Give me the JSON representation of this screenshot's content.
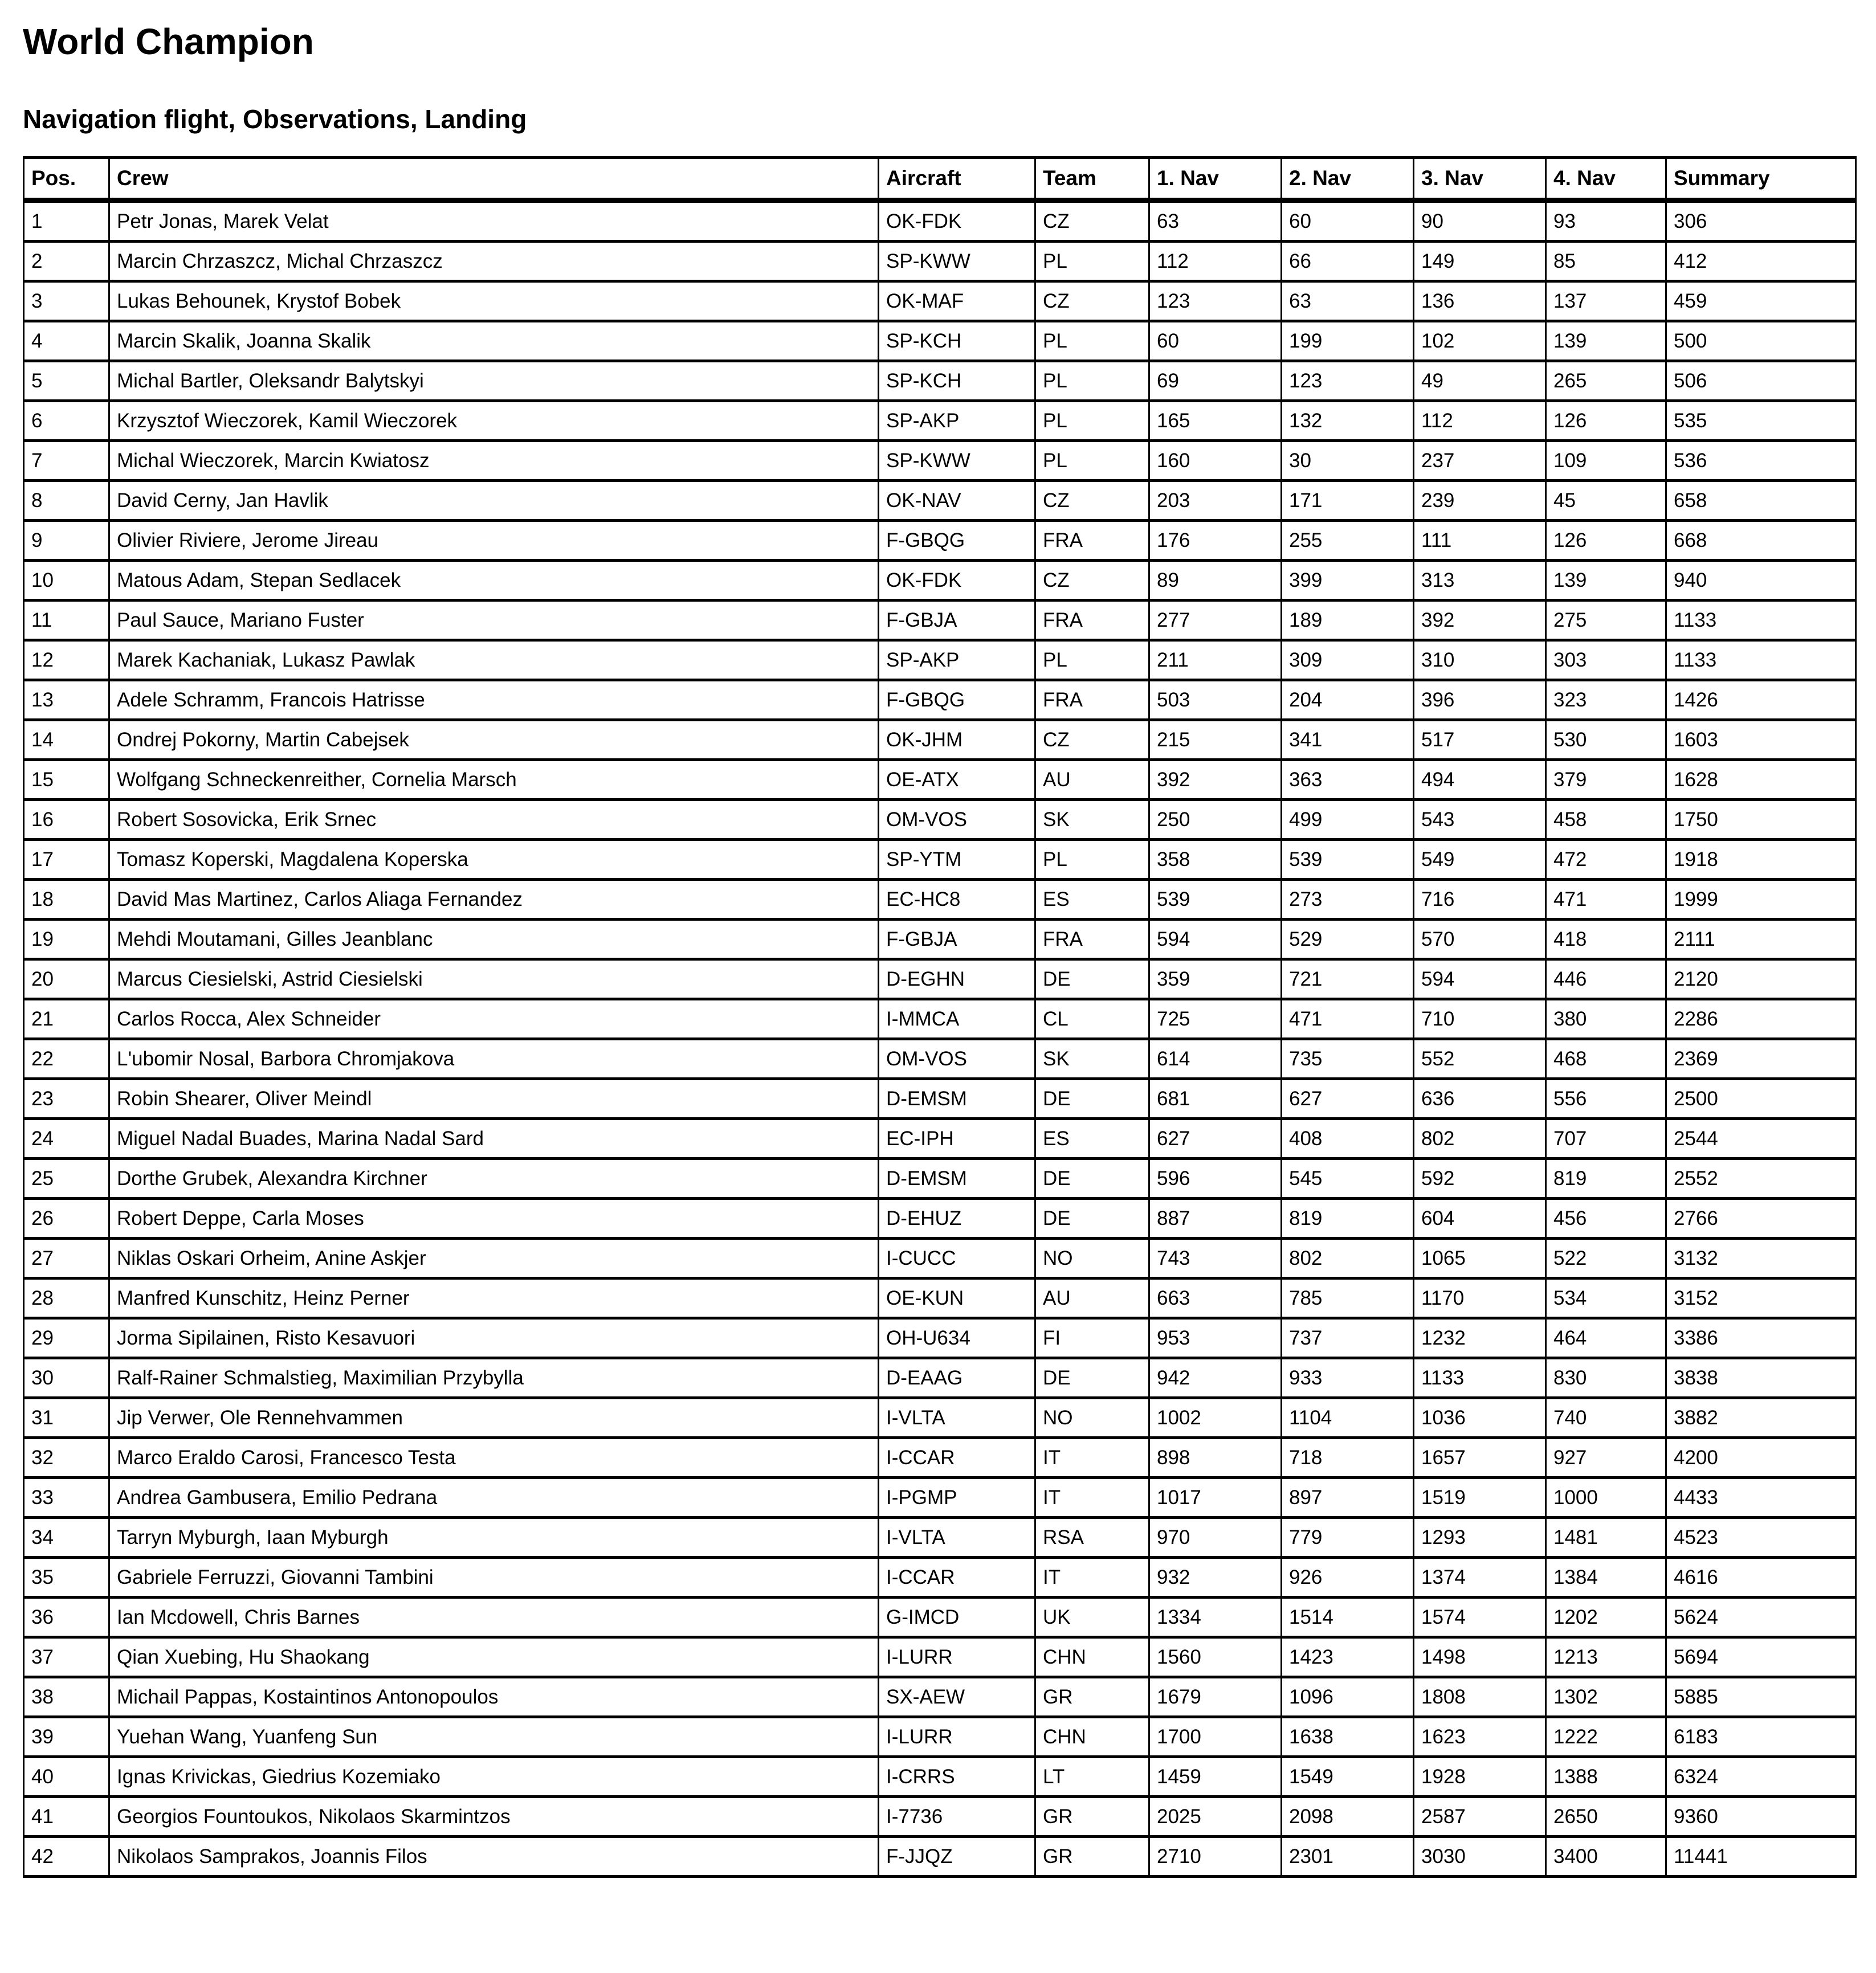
{
  "page": {
    "title": "World Champion",
    "subtitle": "Navigation flight, Observations, Landing"
  },
  "colors": {
    "text": "#000000",
    "border": "#000000",
    "background": "#ffffff"
  },
  "table": {
    "columns": [
      "Pos.",
      "Crew",
      "Aircraft",
      "Team",
      "1. Nav",
      "2. Nav",
      "3. Nav",
      "4. Nav",
      "Summary"
    ],
    "rows": [
      [
        "1",
        "Petr Jonas, Marek Velat",
        "OK-FDK",
        "CZ",
        "63",
        "60",
        "90",
        "93",
        "306"
      ],
      [
        "2",
        "Marcin Chrzaszcz, Michal Chrzaszcz",
        "SP-KWW",
        "PL",
        "112",
        "66",
        "149",
        "85",
        "412"
      ],
      [
        "3",
        "Lukas Behounek, Krystof Bobek",
        "OK-MAF",
        "CZ",
        "123",
        "63",
        "136",
        "137",
        "459"
      ],
      [
        "4",
        "Marcin Skalik, Joanna Skalik",
        "SP-KCH",
        "PL",
        "60",
        "199",
        "102",
        "139",
        "500"
      ],
      [
        "5",
        "Michal Bartler, Oleksandr Balytskyi",
        "SP-KCH",
        "PL",
        "69",
        "123",
        "49",
        "265",
        "506"
      ],
      [
        "6",
        "Krzysztof Wieczorek, Kamil Wieczorek",
        "SP-AKP",
        "PL",
        "165",
        "132",
        "112",
        "126",
        "535"
      ],
      [
        "7",
        "Michal Wieczorek, Marcin Kwiatosz",
        "SP-KWW",
        "PL",
        "160",
        "30",
        "237",
        "109",
        "536"
      ],
      [
        "8",
        "David Cerny, Jan Havlik",
        "OK-NAV",
        "CZ",
        "203",
        "171",
        "239",
        "45",
        "658"
      ],
      [
        "9",
        "Olivier Riviere, Jerome Jireau",
        "F-GBQG",
        "FRA",
        "176",
        "255",
        "111",
        "126",
        "668"
      ],
      [
        "10",
        "Matous Adam, Stepan Sedlacek",
        "OK-FDK",
        "CZ",
        "89",
        "399",
        "313",
        "139",
        "940"
      ],
      [
        "11",
        "Paul Sauce, Mariano Fuster",
        "F-GBJA",
        "FRA",
        "277",
        "189",
        "392",
        "275",
        "1133"
      ],
      [
        "12",
        "Marek Kachaniak, Lukasz Pawlak",
        "SP-AKP",
        "PL",
        "211",
        "309",
        "310",
        "303",
        "1133"
      ],
      [
        "13",
        "Adele Schramm, Francois Hatrisse",
        "F-GBQG",
        "FRA",
        "503",
        "204",
        "396",
        "323",
        "1426"
      ],
      [
        "14",
        "Ondrej Pokorny, Martin Cabejsek",
        "OK-JHM",
        "CZ",
        "215",
        "341",
        "517",
        "530",
        "1603"
      ],
      [
        "15",
        "Wolfgang Schneckenreither, Cornelia Marsch",
        "OE-ATX",
        "AU",
        "392",
        "363",
        "494",
        "379",
        "1628"
      ],
      [
        "16",
        "Robert Sosovicka, Erik Srnec",
        "OM-VOS",
        "SK",
        "250",
        "499",
        "543",
        "458",
        "1750"
      ],
      [
        "17",
        "Tomasz Koperski, Magdalena Koperska",
        "SP-YTM",
        "PL",
        "358",
        "539",
        "549",
        "472",
        "1918"
      ],
      [
        "18",
        "David Mas Martinez, Carlos Aliaga Fernandez",
        "EC-HC8",
        "ES",
        "539",
        "273",
        "716",
        "471",
        "1999"
      ],
      [
        "19",
        "Mehdi Moutamani, Gilles Jeanblanc",
        "F-GBJA",
        "FRA",
        "594",
        "529",
        "570",
        "418",
        "2111"
      ],
      [
        "20",
        "Marcus Ciesielski, Astrid Ciesielski",
        "D-EGHN",
        "DE",
        "359",
        "721",
        "594",
        "446",
        "2120"
      ],
      [
        "21",
        "Carlos Rocca, Alex Schneider",
        "I-MMCA",
        "CL",
        "725",
        "471",
        "710",
        "380",
        "2286"
      ],
      [
        "22",
        "L'ubomir Nosal, Barbora Chromjakova",
        "OM-VOS",
        "SK",
        "614",
        "735",
        "552",
        "468",
        "2369"
      ],
      [
        "23",
        "Robin Shearer, Oliver Meindl",
        "D-EMSM",
        "DE",
        "681",
        "627",
        "636",
        "556",
        "2500"
      ],
      [
        "24",
        "Miguel Nadal Buades, Marina Nadal Sard",
        "EC-IPH",
        "ES",
        "627",
        "408",
        "802",
        "707",
        "2544"
      ],
      [
        "25",
        "Dorthe Grubek, Alexandra Kirchner",
        "D-EMSM",
        "DE",
        "596",
        "545",
        "592",
        "819",
        "2552"
      ],
      [
        "26",
        "Robert Deppe, Carla Moses",
        "D-EHUZ",
        "DE",
        "887",
        "819",
        "604",
        "456",
        "2766"
      ],
      [
        "27",
        "Niklas Oskari Orheim, Anine Askjer",
        "I-CUCC",
        "NO",
        "743",
        "802",
        "1065",
        "522",
        "3132"
      ],
      [
        "28",
        "Manfred Kunschitz, Heinz Perner",
        "OE-KUN",
        "AU",
        "663",
        "785",
        "1170",
        "534",
        "3152"
      ],
      [
        "29",
        "Jorma Sipilainen, Risto Kesavuori",
        "OH-U634",
        "FI",
        "953",
        "737",
        "1232",
        "464",
        "3386"
      ],
      [
        "30",
        "Ralf-Rainer Schmalstieg, Maximilian Przybylla",
        "D-EAAG",
        "DE",
        "942",
        "933",
        "1133",
        "830",
        "3838"
      ],
      [
        "31",
        "Jip Verwer, Ole Rennehvammen",
        "I-VLTA",
        "NO",
        "1002",
        "1104",
        "1036",
        "740",
        "3882"
      ],
      [
        "32",
        "Marco Eraldo Carosi, Francesco Testa",
        "I-CCAR",
        "IT",
        "898",
        "718",
        "1657",
        "927",
        "4200"
      ],
      [
        "33",
        "Andrea Gambusera, Emilio Pedrana",
        "I-PGMP",
        "IT",
        "1017",
        "897",
        "1519",
        "1000",
        "4433"
      ],
      [
        "34",
        "Tarryn Myburgh, Iaan Myburgh",
        "I-VLTA",
        "RSA",
        "970",
        "779",
        "1293",
        "1481",
        "4523"
      ],
      [
        "35",
        "Gabriele Ferruzzi, Giovanni Tambini",
        "I-CCAR",
        "IT",
        "932",
        "926",
        "1374",
        "1384",
        "4616"
      ],
      [
        "36",
        "Ian Mcdowell, Chris Barnes",
        "G-IMCD",
        "UK",
        "1334",
        "1514",
        "1574",
        "1202",
        "5624"
      ],
      [
        "37",
        "Qian Xuebing, Hu Shaokang",
        "I-LURR",
        "CHN",
        "1560",
        "1423",
        "1498",
        "1213",
        "5694"
      ],
      [
        "38",
        "Michail Pappas, Kostaintinos Antonopoulos",
        "SX-AEW",
        "GR",
        "1679",
        "1096",
        "1808",
        "1302",
        "5885"
      ],
      [
        "39",
        "Yuehan Wang, Yuanfeng Sun",
        "I-LURR",
        "CHN",
        "1700",
        "1638",
        "1623",
        "1222",
        "6183"
      ],
      [
        "40",
        "Ignas Krivickas, Giedrius Kozemiako",
        "I-CRRS",
        "LT",
        "1459",
        "1549",
        "1928",
        "1388",
        "6324"
      ],
      [
        "41",
        "Georgios Fountoukos, Nikolaos Skarmintzos",
        "I-7736",
        "GR",
        "2025",
        "2098",
        "2587",
        "2650",
        "9360"
      ],
      [
        "42",
        "Nikolaos Samprakos, Joannis Filos",
        "F-JJQZ",
        "GR",
        "2710",
        "2301",
        "3030",
        "3400",
        "11441"
      ]
    ]
  }
}
